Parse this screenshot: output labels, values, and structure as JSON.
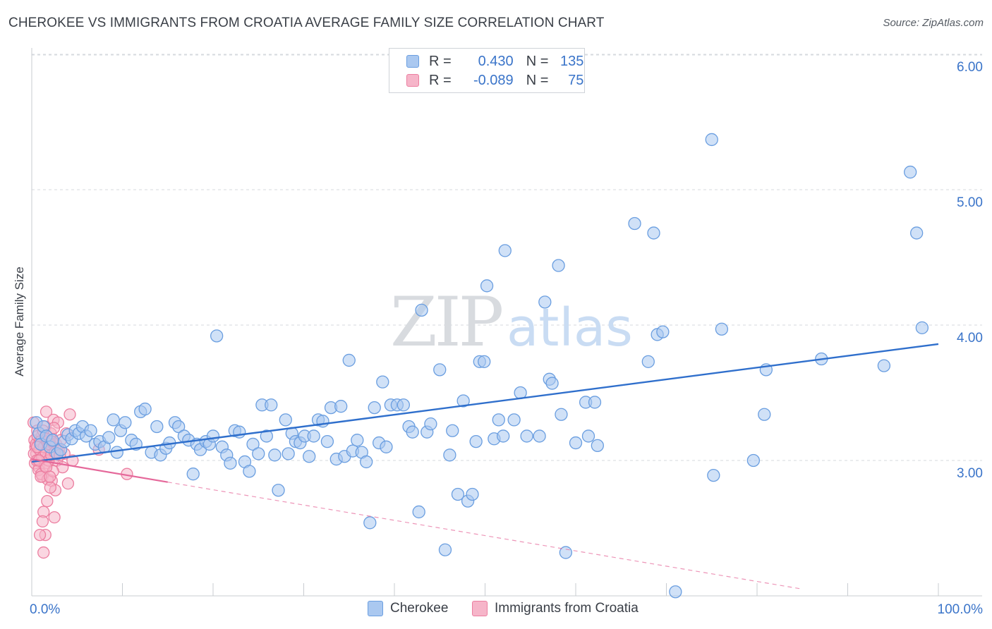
{
  "title": "CHEROKEE VS IMMIGRANTS FROM CROATIA AVERAGE FAMILY SIZE CORRELATION CHART",
  "source": "Source: ZipAtlas.com",
  "watermark": {
    "zip": "ZIP",
    "atlas": "atlas"
  },
  "legend": {
    "r_label": "R =",
    "n_label": "N =",
    "series": [
      {
        "r": "0.430",
        "n": "135"
      },
      {
        "r": "-0.089",
        "n": "75"
      }
    ]
  },
  "colors": {
    "blue_fill": "#aac8f0",
    "blue_edge": "#6a9ee0",
    "blue_line": "#2f6fcc",
    "pink_fill": "#f6b5c9",
    "pink_edge": "#ec7ea0",
    "pink_line": "#e5689a",
    "grid": "#d6d9de",
    "axis_text": "#3a74c9"
  },
  "chart_data": {
    "type": "scatter",
    "title": "CHEROKEE VS IMMIGRANTS FROM CROATIA AVERAGE FAMILY SIZE CORRELATION CHART",
    "xlabel": "",
    "ylabel": "Average Family Size",
    "xlim": [
      0,
      100
    ],
    "ylim": [
      2.0,
      6.1
    ],
    "x_tick_labels": [
      "0.0%",
      "100.0%"
    ],
    "y_ticks": [
      3.0,
      4.0,
      5.0,
      6.0
    ],
    "y_tick_labels": [
      "3.00",
      "4.00",
      "5.00",
      "6.00"
    ],
    "grid": true,
    "legend_position": "top-center",
    "series": [
      {
        "name": "Cherokee",
        "color": "#6a9ee0",
        "r": 0.43,
        "n": 135,
        "trend": {
          "x": [
            0,
            100
          ],
          "y": [
            2.99,
            3.86
          ],
          "style": "solid"
        },
        "points": [
          [
            0.5,
            3.28
          ],
          [
            0.8,
            3.2
          ],
          [
            1.0,
            3.12
          ],
          [
            1.3,
            3.25
          ],
          [
            1.6,
            3.18
          ],
          [
            2.0,
            3.1
          ],
          [
            2.3,
            3.15
          ],
          [
            2.8,
            3.05
          ],
          [
            3.2,
            3.08
          ],
          [
            3.6,
            3.14
          ],
          [
            4.0,
            3.19
          ],
          [
            4.4,
            3.16
          ],
          [
            4.8,
            3.22
          ],
          [
            5.2,
            3.2
          ],
          [
            5.6,
            3.25
          ],
          [
            6.0,
            3.18
          ],
          [
            6.5,
            3.22
          ],
          [
            7.0,
            3.12
          ],
          [
            7.5,
            3.14
          ],
          [
            8.0,
            3.1
          ],
          [
            8.5,
            3.17
          ],
          [
            9.0,
            3.3
          ],
          [
            9.4,
            3.06
          ],
          [
            9.8,
            3.22
          ],
          [
            10.3,
            3.28
          ],
          [
            11.0,
            3.15
          ],
          [
            11.5,
            3.12
          ],
          [
            12.0,
            3.36
          ],
          [
            12.5,
            3.38
          ],
          [
            13.2,
            3.06
          ],
          [
            13.8,
            3.25
          ],
          [
            14.2,
            3.04
          ],
          [
            14.8,
            3.09
          ],
          [
            15.2,
            3.13
          ],
          [
            15.8,
            3.28
          ],
          [
            16.2,
            3.25
          ],
          [
            16.8,
            3.18
          ],
          [
            17.3,
            3.15
          ],
          [
            17.8,
            2.9
          ],
          [
            18.2,
            3.12
          ],
          [
            18.6,
            3.08
          ],
          [
            19.2,
            3.14
          ],
          [
            19.6,
            3.12
          ],
          [
            20.0,
            3.18
          ],
          [
            20.4,
            3.92
          ],
          [
            21.0,
            3.1
          ],
          [
            21.5,
            3.04
          ],
          [
            21.9,
            2.98
          ],
          [
            22.4,
            3.22
          ],
          [
            22.9,
            3.21
          ],
          [
            23.5,
            2.99
          ],
          [
            24.0,
            2.92
          ],
          [
            24.4,
            3.12
          ],
          [
            25.0,
            3.05
          ],
          [
            25.4,
            3.41
          ],
          [
            25.9,
            3.18
          ],
          [
            26.4,
            3.41
          ],
          [
            26.8,
            3.04
          ],
          [
            27.2,
            2.78
          ],
          [
            28.0,
            3.3
          ],
          [
            28.3,
            3.05
          ],
          [
            28.7,
            3.2
          ],
          [
            29.1,
            3.14
          ],
          [
            29.6,
            3.13
          ],
          [
            30.1,
            3.18
          ],
          [
            30.6,
            3.03
          ],
          [
            31.1,
            3.18
          ],
          [
            31.6,
            3.3
          ],
          [
            32.1,
            3.29
          ],
          [
            32.6,
            3.14
          ],
          [
            33.0,
            3.39
          ],
          [
            33.6,
            3.01
          ],
          [
            34.1,
            3.4
          ],
          [
            34.5,
            3.03
          ],
          [
            35.0,
            3.74
          ],
          [
            35.4,
            3.07
          ],
          [
            35.9,
            3.15
          ],
          [
            36.4,
            3.06
          ],
          [
            36.9,
            2.99
          ],
          [
            37.3,
            2.54
          ],
          [
            37.8,
            3.39
          ],
          [
            38.3,
            3.13
          ],
          [
            38.7,
            3.58
          ],
          [
            39.1,
            3.1
          ],
          [
            39.6,
            3.41
          ],
          [
            40.3,
            3.41
          ],
          [
            41.0,
            3.41
          ],
          [
            41.6,
            3.25
          ],
          [
            42.0,
            3.21
          ],
          [
            42.7,
            2.62
          ],
          [
            43.0,
            4.11
          ],
          [
            43.6,
            3.21
          ],
          [
            44.0,
            3.27
          ],
          [
            45.0,
            3.67
          ],
          [
            45.6,
            2.34
          ],
          [
            46.1,
            3.04
          ],
          [
            46.4,
            3.22
          ],
          [
            47.0,
            2.75
          ],
          [
            47.6,
            3.44
          ],
          [
            48.1,
            2.7
          ],
          [
            48.6,
            2.75
          ],
          [
            49.0,
            3.14
          ],
          [
            49.4,
            3.73
          ],
          [
            49.9,
            3.73
          ],
          [
            50.2,
            4.29
          ],
          [
            51.0,
            3.16
          ],
          [
            51.5,
            3.3
          ],
          [
            52.0,
            3.18
          ],
          [
            52.2,
            4.55
          ],
          [
            53.2,
            3.3
          ],
          [
            53.9,
            3.5
          ],
          [
            54.6,
            3.18
          ],
          [
            56.0,
            3.18
          ],
          [
            56.6,
            4.17
          ],
          [
            57.1,
            3.6
          ],
          [
            57.4,
            3.57
          ],
          [
            58.1,
            4.44
          ],
          [
            58.4,
            3.34
          ],
          [
            58.9,
            2.32
          ],
          [
            60.0,
            3.13
          ],
          [
            61.1,
            3.43
          ],
          [
            61.4,
            3.18
          ],
          [
            62.1,
            3.43
          ],
          [
            62.4,
            3.11
          ],
          [
            66.5,
            4.75
          ],
          [
            68.0,
            3.73
          ],
          [
            68.6,
            4.68
          ],
          [
            69.0,
            3.93
          ],
          [
            69.6,
            3.95
          ],
          [
            71.0,
            2.03
          ],
          [
            75.0,
            5.37
          ],
          [
            75.2,
            2.89
          ],
          [
            76.1,
            3.97
          ],
          [
            79.6,
            3.0
          ],
          [
            80.8,
            3.34
          ],
          [
            81.0,
            3.67
          ],
          [
            87.1,
            3.75
          ],
          [
            94.0,
            3.7
          ],
          [
            96.9,
            5.13
          ],
          [
            97.6,
            4.68
          ],
          [
            98.2,
            3.98
          ]
        ]
      },
      {
        "name": "Immigrants from Croatia",
        "color": "#ec7ea0",
        "r": -0.089,
        "n": 75,
        "trend": {
          "x": [
            0,
            15
          ],
          "y": [
            3.01,
            2.84
          ],
          "style": "solid",
          "extended": {
            "x": [
              15,
              85
            ],
            "y": [
              2.84,
              2.05
            ],
            "style": "dashed"
          }
        },
        "points": [
          [
            0.2,
            3.28
          ],
          [
            0.3,
            3.15
          ],
          [
            0.4,
            3.1
          ],
          [
            0.5,
            3.05
          ],
          [
            0.6,
            3.22
          ],
          [
            0.7,
            3.0
          ],
          [
            0.8,
            2.95
          ],
          [
            0.9,
            3.12
          ],
          [
            1.0,
            3.08
          ],
          [
            1.1,
            3.18
          ],
          [
            1.2,
            2.88
          ],
          [
            1.3,
            3.03
          ],
          [
            1.4,
            3.13
          ],
          [
            1.5,
            3.25
          ],
          [
            1.6,
            3.36
          ],
          [
            1.7,
            2.98
          ],
          [
            1.8,
            3.08
          ],
          [
            1.9,
            3.15
          ],
          [
            2.0,
            3.05
          ],
          [
            2.1,
            3.2
          ],
          [
            2.2,
            2.85
          ],
          [
            2.3,
            3.1
          ],
          [
            2.4,
            3.3
          ],
          [
            2.5,
            3.02
          ],
          [
            2.6,
            2.78
          ],
          [
            2.7,
            3.12
          ],
          [
            2.8,
            3.0
          ],
          [
            2.9,
            3.28
          ],
          [
            3.0,
            3.08
          ],
          [
            3.2,
            3.15
          ],
          [
            3.4,
            2.95
          ],
          [
            3.6,
            3.05
          ],
          [
            3.8,
            3.2
          ],
          [
            4.0,
            2.83
          ],
          [
            4.2,
            3.34
          ],
          [
            0.25,
            3.05
          ],
          [
            0.35,
            2.98
          ],
          [
            0.45,
            3.12
          ],
          [
            0.55,
            3.0
          ],
          [
            0.65,
            3.18
          ],
          [
            0.75,
            2.93
          ],
          [
            0.85,
            3.08
          ],
          [
            0.95,
            3.14
          ],
          [
            1.05,
            2.9
          ],
          [
            1.15,
            3.02
          ],
          [
            1.25,
            3.22
          ],
          [
            1.35,
            3.1
          ],
          [
            1.45,
            2.96
          ],
          [
            1.55,
            3.06
          ],
          [
            1.65,
            3.16
          ],
          [
            1.75,
            2.86
          ],
          [
            1.85,
            3.0
          ],
          [
            1.95,
            3.12
          ],
          [
            2.05,
            2.8
          ],
          [
            2.15,
            3.04
          ],
          [
            2.25,
            3.14
          ],
          [
            2.35,
            2.92
          ],
          [
            2.45,
            3.24
          ],
          [
            2.55,
            3.06
          ],
          [
            1.3,
            2.62
          ],
          [
            1.2,
            2.55
          ],
          [
            1.5,
            2.45
          ],
          [
            0.9,
            2.45
          ],
          [
            1.3,
            2.32
          ],
          [
            1.7,
            2.7
          ],
          [
            2.5,
            2.58
          ],
          [
            3.1,
            3.04
          ],
          [
            1.0,
            2.88
          ],
          [
            0.8,
            3.0
          ],
          [
            1.6,
            2.95
          ],
          [
            2.0,
            2.88
          ],
          [
            0.6,
            3.1
          ],
          [
            7.4,
            3.08
          ],
          [
            10.5,
            2.9
          ],
          [
            4.5,
            3.0
          ]
        ]
      }
    ]
  },
  "bottom_legend": [
    {
      "label": "Cherokee"
    },
    {
      "label": "Immigrants from Croatia"
    }
  ]
}
